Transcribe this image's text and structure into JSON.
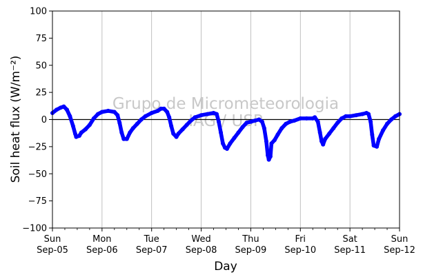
{
  "chart_data": {
    "type": "line",
    "xlabel": "Day",
    "ylabel": "Soil heat flux (W/m⁻²)",
    "ylim": [
      -100,
      100
    ],
    "yticks": [
      100,
      75,
      50,
      25,
      0,
      -25,
      -50,
      -75,
      -100
    ],
    "xlim": [
      "2022-09-05",
      "2022-09-12"
    ],
    "xticks": [
      {
        "day": "Sun",
        "date": "Sep-05"
      },
      {
        "day": "Mon",
        "date": "Sep-06"
      },
      {
        "day": "Tue",
        "date": "Sep-07"
      },
      {
        "day": "Wed",
        "date": "Sep-08"
      },
      {
        "day": "Thu",
        "date": "Sep-09"
      },
      {
        "day": "Fri",
        "date": "Sep-10"
      },
      {
        "day": "Sat",
        "date": "Sep-11"
      },
      {
        "day": "Sun",
        "date": "Sep-12"
      }
    ],
    "grid": "vertical",
    "zero_line": true,
    "watermark": [
      "Grupo de Micrometeorologia",
      "IAG / USP"
    ],
    "series": [
      {
        "color": "#0000ff",
        "points": [
          [
            "2022-09-05 00:00",
            6
          ],
          [
            "2022-09-05 02:00",
            9
          ],
          [
            "2022-09-05 04:00",
            11
          ],
          [
            "2022-09-05 05:30",
            12
          ],
          [
            "2022-09-05 07:00",
            9
          ],
          [
            "2022-09-05 08:30",
            3
          ],
          [
            "2022-09-05 10:00",
            -6
          ],
          [
            "2022-09-05 11:00",
            -13
          ],
          [
            "2022-09-05 11:30",
            -16
          ],
          [
            "2022-09-05 13:00",
            -15
          ],
          [
            "2022-09-05 14:00",
            -12
          ],
          [
            "2022-09-05 16:00",
            -9
          ],
          [
            "2022-09-05 18:00",
            -5
          ],
          [
            "2022-09-05 20:00",
            1
          ],
          [
            "2022-09-05 22:00",
            5
          ],
          [
            "2022-09-06 00:00",
            7
          ],
          [
            "2022-09-06 03:00",
            8
          ],
          [
            "2022-09-06 06:00",
            7
          ],
          [
            "2022-09-06 07:30",
            4
          ],
          [
            "2022-09-06 08:30",
            -3
          ],
          [
            "2022-09-06 09:30",
            -12
          ],
          [
            "2022-09-06 10:30",
            -18
          ],
          [
            "2022-09-06 12:00",
            -18
          ],
          [
            "2022-09-06 13:30",
            -12
          ],
          [
            "2022-09-06 15:00",
            -8
          ],
          [
            "2022-09-06 17:00",
            -4
          ],
          [
            "2022-09-06 19:00",
            0
          ],
          [
            "2022-09-06 21:00",
            3
          ],
          [
            "2022-09-07 00:00",
            6
          ],
          [
            "2022-09-07 03:00",
            8
          ],
          [
            "2022-09-07 04:30",
            10
          ],
          [
            "2022-09-07 06:00",
            10
          ],
          [
            "2022-09-07 07:30",
            7
          ],
          [
            "2022-09-07 08:30",
            2
          ],
          [
            "2022-09-07 09:30",
            -6
          ],
          [
            "2022-09-07 10:30",
            -13
          ],
          [
            "2022-09-07 12:00",
            -16
          ],
          [
            "2022-09-07 13:00",
            -13
          ],
          [
            "2022-09-07 15:00",
            -9
          ],
          [
            "2022-09-07 17:00",
            -5
          ],
          [
            "2022-09-07 19:00",
            -1
          ],
          [
            "2022-09-07 21:00",
            2
          ],
          [
            "2022-09-08 00:00",
            4
          ],
          [
            "2022-09-08 03:00",
            5
          ],
          [
            "2022-09-08 06:00",
            6
          ],
          [
            "2022-09-08 07:30",
            5
          ],
          [
            "2022-09-08 08:30",
            -2
          ],
          [
            "2022-09-08 09:30",
            -12
          ],
          [
            "2022-09-08 10:30",
            -22
          ],
          [
            "2022-09-08 11:30",
            -26
          ],
          [
            "2022-09-08 12:30",
            -27
          ],
          [
            "2022-09-08 14:00",
            -22
          ],
          [
            "2022-09-08 16:00",
            -17
          ],
          [
            "2022-09-08 18:00",
            -12
          ],
          [
            "2022-09-08 20:00",
            -7
          ],
          [
            "2022-09-08 22:00",
            -3
          ],
          [
            "2022-09-09 00:00",
            -2
          ],
          [
            "2022-09-09 02:00",
            -1
          ],
          [
            "2022-09-09 04:00",
            0
          ],
          [
            "2022-09-09 05:30",
            -2
          ],
          [
            "2022-09-09 06:30",
            -8
          ],
          [
            "2022-09-09 07:30",
            -20
          ],
          [
            "2022-09-09 08:15",
            -33
          ],
          [
            "2022-09-09 08:45",
            -37
          ],
          [
            "2022-09-09 09:30",
            -34
          ],
          [
            "2022-09-09 10:00",
            -22
          ],
          [
            "2022-09-09 11:30",
            -19
          ],
          [
            "2022-09-09 13:00",
            -14
          ],
          [
            "2022-09-09 15:00",
            -8
          ],
          [
            "2022-09-09 17:00",
            -4
          ],
          [
            "2022-09-09 19:00",
            -2
          ],
          [
            "2022-09-09 21:00",
            -1
          ],
          [
            "2022-09-10 00:00",
            1
          ],
          [
            "2022-09-10 03:00",
            1
          ],
          [
            "2022-09-10 06:00",
            1
          ],
          [
            "2022-09-10 07:00",
            2
          ],
          [
            "2022-09-10 08:30",
            -2
          ],
          [
            "2022-09-10 09:30",
            -12
          ],
          [
            "2022-09-10 10:15",
            -20
          ],
          [
            "2022-09-10 11:00",
            -23
          ],
          [
            "2022-09-10 12:00",
            -18
          ],
          [
            "2022-09-10 14:00",
            -13
          ],
          [
            "2022-09-10 16:00",
            -8
          ],
          [
            "2022-09-10 18:00",
            -3
          ],
          [
            "2022-09-10 20:00",
            1
          ],
          [
            "2022-09-10 22:00",
            3
          ],
          [
            "2022-09-11 00:00",
            3
          ],
          [
            "2022-09-11 03:00",
            4
          ],
          [
            "2022-09-11 06:00",
            5
          ],
          [
            "2022-09-11 08:00",
            6
          ],
          [
            "2022-09-11 09:00",
            5
          ],
          [
            "2022-09-11 10:00",
            -2
          ],
          [
            "2022-09-11 10:45",
            -14
          ],
          [
            "2022-09-11 11:30",
            -24
          ],
          [
            "2022-09-11 13:00",
            -25
          ],
          [
            "2022-09-11 14:00",
            -18
          ],
          [
            "2022-09-11 16:00",
            -10
          ],
          [
            "2022-09-11 18:00",
            -4
          ],
          [
            "2022-09-11 20:00",
            0
          ],
          [
            "2022-09-11 22:00",
            3
          ],
          [
            "2022-09-12 00:00",
            5
          ]
        ]
      }
    ]
  }
}
